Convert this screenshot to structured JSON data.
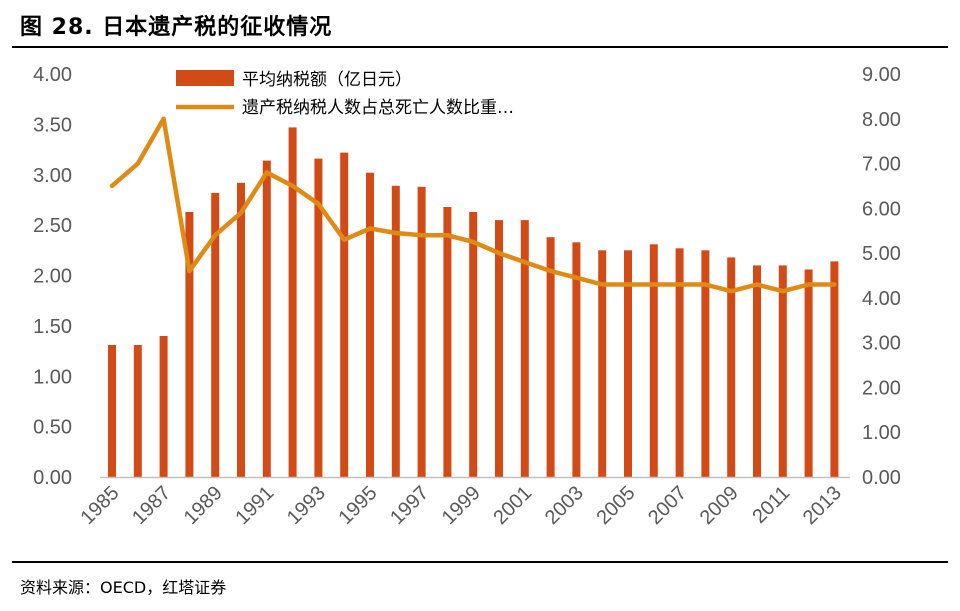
{
  "figure": {
    "title": "图 28. 日本遗产税的征收情况",
    "source": "资料来源：OECD，红塔证券"
  },
  "chart_data": {
    "type": "bar",
    "x": [
      "1985",
      "1986",
      "1987",
      "1988",
      "1989",
      "1990",
      "1991",
      "1992",
      "1993",
      "1994",
      "1995",
      "1996",
      "1997",
      "1998",
      "1999",
      "2000",
      "2001",
      "2002",
      "2003",
      "2004",
      "2005",
      "2006",
      "2007",
      "2008",
      "2009",
      "2010",
      "2011",
      "2012",
      "2013"
    ],
    "x_tick_labels": [
      "1985",
      "1987",
      "1989",
      "1991",
      "1993",
      "1995",
      "1997",
      "1999",
      "2001",
      "2003",
      "2005",
      "2007",
      "2009",
      "2011",
      "2013"
    ],
    "series": [
      {
        "name": "平均纳税额（亿日元）",
        "type": "bar",
        "axis": "left",
        "color": "#D24B16",
        "values": [
          1.31,
          1.31,
          1.4,
          2.63,
          2.82,
          2.92,
          3.14,
          3.47,
          3.16,
          3.22,
          3.02,
          2.89,
          2.88,
          2.68,
          2.63,
          2.55,
          2.55,
          2.38,
          2.33,
          2.25,
          2.25,
          2.31,
          2.27,
          2.25,
          2.18,
          2.1,
          2.1,
          2.06,
          2.14
        ]
      },
      {
        "name": "遗产税纳税人数占总死亡人数比重…",
        "type": "line",
        "axis": "right",
        "color": "#E08A16",
        "values": [
          6.5,
          7.0,
          8.0,
          4.6,
          5.4,
          5.9,
          6.8,
          6.5,
          6.1,
          5.3,
          5.55,
          5.45,
          5.4,
          5.4,
          5.25,
          5.0,
          4.8,
          4.6,
          4.45,
          4.3,
          4.3,
          4.3,
          4.3,
          4.3,
          4.15,
          4.3,
          4.15,
          4.3,
          4.3
        ]
      }
    ],
    "y_left": {
      "min": 0,
      "max": 4,
      "ticks": [
        "0.00",
        "0.50",
        "1.00",
        "1.50",
        "2.00",
        "2.50",
        "3.00",
        "3.50",
        "4.00"
      ]
    },
    "y_right": {
      "min": 0,
      "max": 9,
      "ticks": [
        "0.00",
        "1.00",
        "2.00",
        "3.00",
        "4.00",
        "5.00",
        "6.00",
        "7.00",
        "8.00",
        "9.00"
      ]
    },
    "grid": false,
    "legend_position": "top-left"
  }
}
